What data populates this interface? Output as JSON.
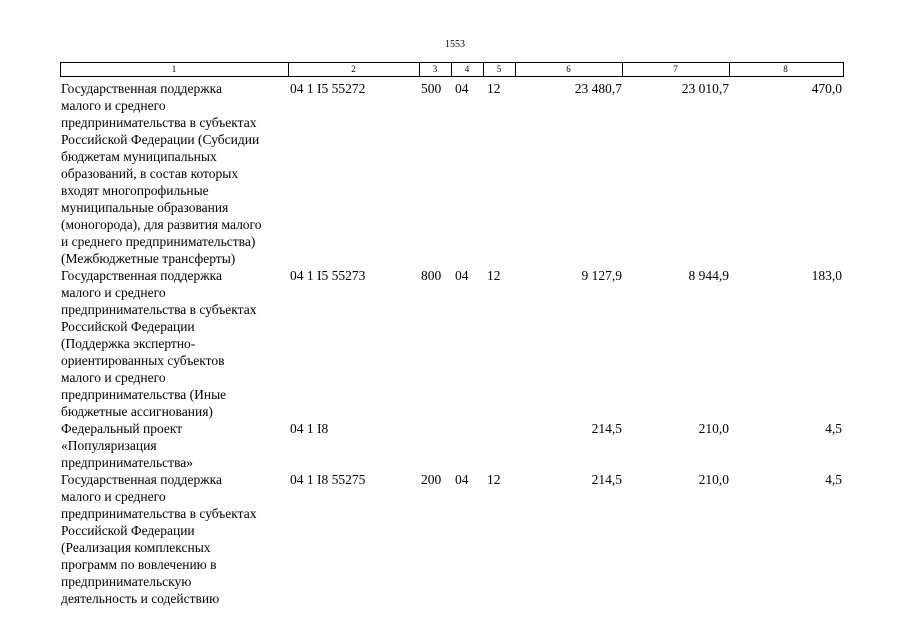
{
  "page_number": "1553",
  "table": {
    "header": [
      "1",
      "2",
      "3",
      "4",
      "5",
      "6",
      "7",
      "8"
    ],
    "rows": [
      {
        "name": [
          "Государственная поддержка",
          "малого и среднего",
          "предпринимательства в субъектах",
          "Российской Федерации (Субсидии",
          "бюджетам муниципальных",
          "образований, в состав которых",
          "входят многопрофильные",
          "муниципальные образования",
          "(моногорода), для развития малого",
          "и среднего предпринимательства)",
          "(Межбюджетные трансферты)"
        ],
        "code": "04 1 I5 55272",
        "c3": "500",
        "c4": "04",
        "c5": "12",
        "c6": "23 480,7",
        "c7": "23 010,7",
        "c8": "470,0"
      },
      {
        "name": [
          "Государственная поддержка",
          "малого и среднего",
          "предпринимательства в субъектах",
          "Российской Федерации",
          "(Поддержка экспертно-",
          "ориентированных субъектов",
          "малого и среднего",
          "предпринимательства (Иные",
          "бюджетные ассигнования)"
        ],
        "code": "04 1 I5 55273",
        "c3": "800",
        "c4": "04",
        "c5": "12",
        "c6": "9 127,9",
        "c7": "8 944,9",
        "c8": "183,0"
      },
      {
        "name": [
          "Федеральный проект",
          "«Популяризация",
          "предпринимательства»"
        ],
        "code": "04 1 I8",
        "c6": "214,5",
        "c7": "210,0",
        "c8": "4,5"
      },
      {
        "name": [
          "Государственная поддержка",
          "малого и среднего",
          "предпринимательства в субъектах",
          "Российской Федерации",
          "(Реализация комплексных",
          "программ по вовлечению в",
          "предпринимательскую",
          "деятельность и содействию"
        ],
        "code": "04 1 I8 55275",
        "c3": "200",
        "c4": "04",
        "c5": "12",
        "c6": "214,5",
        "c7": "210,0",
        "c8": "4,5"
      }
    ]
  }
}
